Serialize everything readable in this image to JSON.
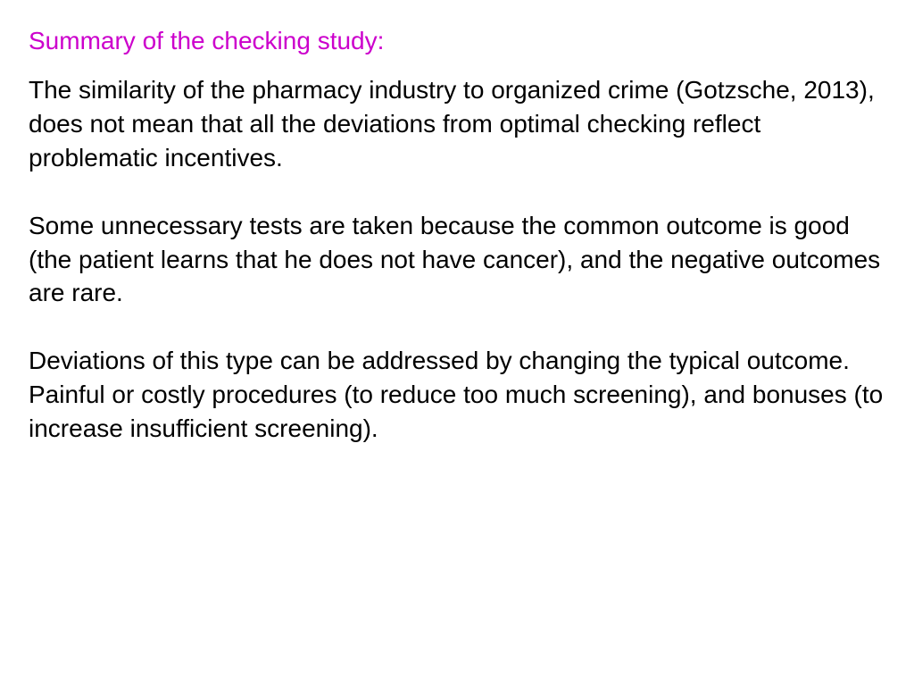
{
  "slide": {
    "title": "Summary of the checking study:",
    "title_color": "#cc00cc",
    "body_color": "#000000",
    "background_color": "#ffffff",
    "title_fontsize": 28,
    "body_fontsize": 28,
    "paragraphs": [
      "The similarity of the pharmacy industry to organized crime (Gotzsche, 2013), does not mean that all the deviations from optimal checking reflect problematic incentives.",
      "Some unnecessary tests are taken because the common outcome is good (the patient learns that he does not have cancer), and the negative outcomes are rare.",
      "Deviations of this type can be addressed by changing the typical outcome. Painful or costly procedures (to reduce too much screening), and bonuses (to increase insufficient screening)."
    ]
  }
}
